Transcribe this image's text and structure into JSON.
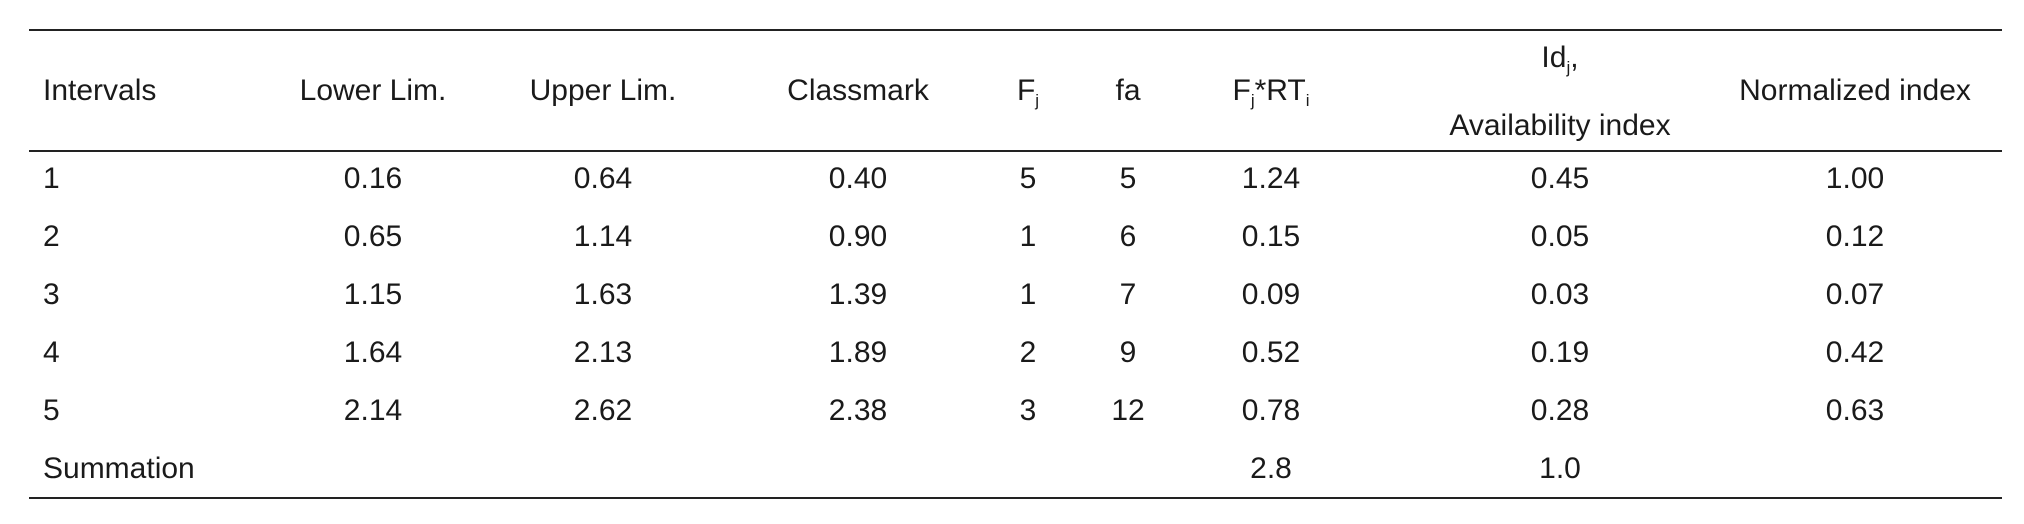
{
  "table": {
    "header": [
      [
        [
          {
            "text": "Intervals"
          }
        ]
      ],
      [
        [
          {
            "text": "Lower Lim."
          }
        ]
      ],
      [
        [
          {
            "text": "Upper Lim."
          }
        ]
      ],
      [
        [
          {
            "text": "Classmark"
          }
        ]
      ],
      [
        [
          {
            "text": "F"
          },
          {
            "sub": "j"
          }
        ]
      ],
      [
        [
          {
            "text": "fa"
          }
        ]
      ],
      [
        [
          {
            "text": "F"
          },
          {
            "sub": "j"
          },
          {
            "text": "*RT"
          },
          {
            "sub": "i"
          }
        ]
      ],
      [
        [
          {
            "text": "Id"
          },
          {
            "sub": "j"
          },
          {
            "text": ","
          }
        ],
        [
          {
            "text": "Availability index"
          }
        ]
      ],
      [
        [
          {
            "text": "Normalized index"
          }
        ]
      ]
    ],
    "rows": [
      [
        "1",
        "0.16",
        "0.64",
        "0.40",
        "5",
        "5",
        "1.24",
        "0.45",
        "1.00"
      ],
      [
        "2",
        "0.65",
        "1.14",
        "0.90",
        "1",
        "6",
        "0.15",
        "0.05",
        "0.12"
      ],
      [
        "3",
        "1.15",
        "1.63",
        "1.39",
        "1",
        "7",
        "0.09",
        "0.03",
        "0.07"
      ],
      [
        "4",
        "1.64",
        "2.13",
        "1.89",
        "2",
        "9",
        "0.52",
        "0.19",
        "0.42"
      ],
      [
        "5",
        "2.14",
        "2.62",
        "2.38",
        "3",
        "12",
        "0.78",
        "0.28",
        "0.63"
      ],
      [
        "Summation",
        null,
        null,
        null,
        null,
        null,
        "2.8",
        "1.0",
        null
      ]
    ]
  }
}
